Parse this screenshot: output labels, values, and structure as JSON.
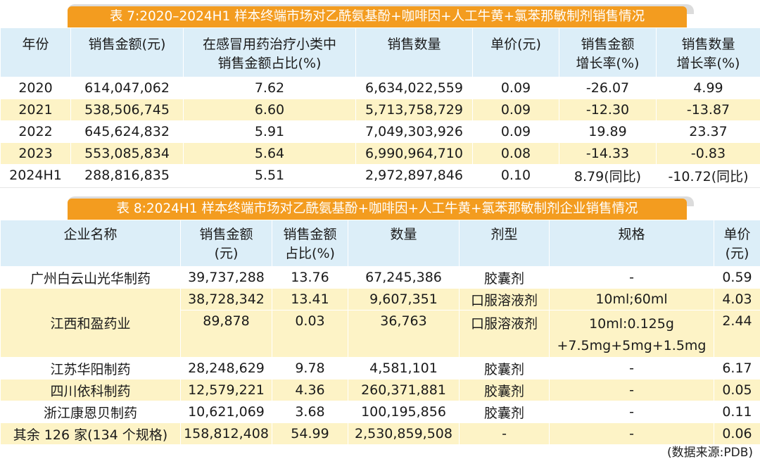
{
  "table7": {
    "title": "表 7:2020–2024H1 样本终端市场对乙酰氨基酚+咖啡因+人工牛黄+氯苯那敏制剂销售情况",
    "headers": [
      {
        "l1": "年份",
        "l2": ""
      },
      {
        "l1": "销售金额(元)",
        "l2": ""
      },
      {
        "l1": "在感冒用药治疗小类中",
        "l2": "销售金额占比(%)"
      },
      {
        "l1": "销售数量",
        "l2": ""
      },
      {
        "l1": "单价(元)",
        "l2": ""
      },
      {
        "l1": "销售金额",
        "l2": "增长率(%)"
      },
      {
        "l1": "销售数量",
        "l2": "增长率(%)"
      }
    ],
    "rows": [
      [
        "2020",
        "614,047,062",
        "7.62",
        "6,634,022,559",
        "0.09",
        "-26.07",
        "4.99"
      ],
      [
        "2021",
        "538,506,745",
        "6.60",
        "5,713,758,729",
        "0.09",
        "-12.30",
        "-13.87"
      ],
      [
        "2022",
        "645,624,832",
        "5.91",
        "7,049,303,926",
        "0.09",
        "19.89",
        "23.37"
      ],
      [
        "2023",
        "553,085,834",
        "5.64",
        "6,990,964,710",
        "0.08",
        "-14.33",
        "-0.83"
      ],
      [
        "2024H1",
        "288,816,835",
        "5.51",
        "2,972,897,846",
        "0.10",
        "8.79(同比)",
        "-10.72(同比)"
      ]
    ]
  },
  "table8": {
    "title": "表 8:2024H1 样本终端市场对乙酰氨基酚+咖啡因+人工牛黄+氯苯那敏制剂企业销售情况",
    "headers": [
      {
        "l1": "企业名称",
        "l2": ""
      },
      {
        "l1": "销售金额",
        "l2": "(元)"
      },
      {
        "l1": "销售金额",
        "l2": "占比(%)"
      },
      {
        "l1": "数量",
        "l2": ""
      },
      {
        "l1": "剂型",
        "l2": ""
      },
      {
        "l1": "规格",
        "l2": ""
      },
      {
        "l1": "单价",
        "l2": "(元)"
      }
    ],
    "rows": [
      {
        "company": "广州白云山光华制药",
        "amount": "39,737,288",
        "share": "13.76",
        "qty": "67,245,386",
        "form": "胶囊剂",
        "spec": "-",
        "spec2": "",
        "price": "0.59"
      },
      {
        "company": "江西和盈药业",
        "amount": "38,728,342",
        "share": "13.41",
        "qty": "9,607,351",
        "form": "口服溶液剂",
        "spec": "10ml;60ml",
        "spec2": "",
        "price": "4.03"
      },
      {
        "company": "",
        "amount": "89,878",
        "share": "0.03",
        "qty": "36,763",
        "form": "口服溶液剂",
        "spec": "10ml:0.125g",
        "spec2": "+7.5mg+5mg+1.5mg",
        "price": "2.44"
      },
      {
        "company": "江苏华阳制药",
        "amount": "28,248,629",
        "share": "9.78",
        "qty": "4,581,101",
        "form": "胶囊剂",
        "spec": "-",
        "spec2": "",
        "price": "6.17"
      },
      {
        "company": "四川依科制药",
        "amount": "12,579,221",
        "share": "4.36",
        "qty": "260,371,881",
        "form": "胶囊剂",
        "spec": "-",
        "spec2": "",
        "price": "0.05"
      },
      {
        "company": "浙江康恩贝制药",
        "amount": "10,621,069",
        "share": "3.68",
        "qty": "100,195,856",
        "form": "胶囊剂",
        "spec": "-",
        "spec2": "",
        "price": "0.11"
      },
      {
        "company": "其余 126 家(134 个规格)",
        "amount": "158,812,408",
        "share": "54.99",
        "qty": "2,530,859,508",
        "form": "-",
        "spec": "-",
        "spec2": "",
        "price": "0.06"
      }
    ]
  },
  "source": "(数据来源:PDB)",
  "colors": {
    "banner": "#f39c1f",
    "header": "#dceef8",
    "stripe": "#fdf3c6"
  }
}
